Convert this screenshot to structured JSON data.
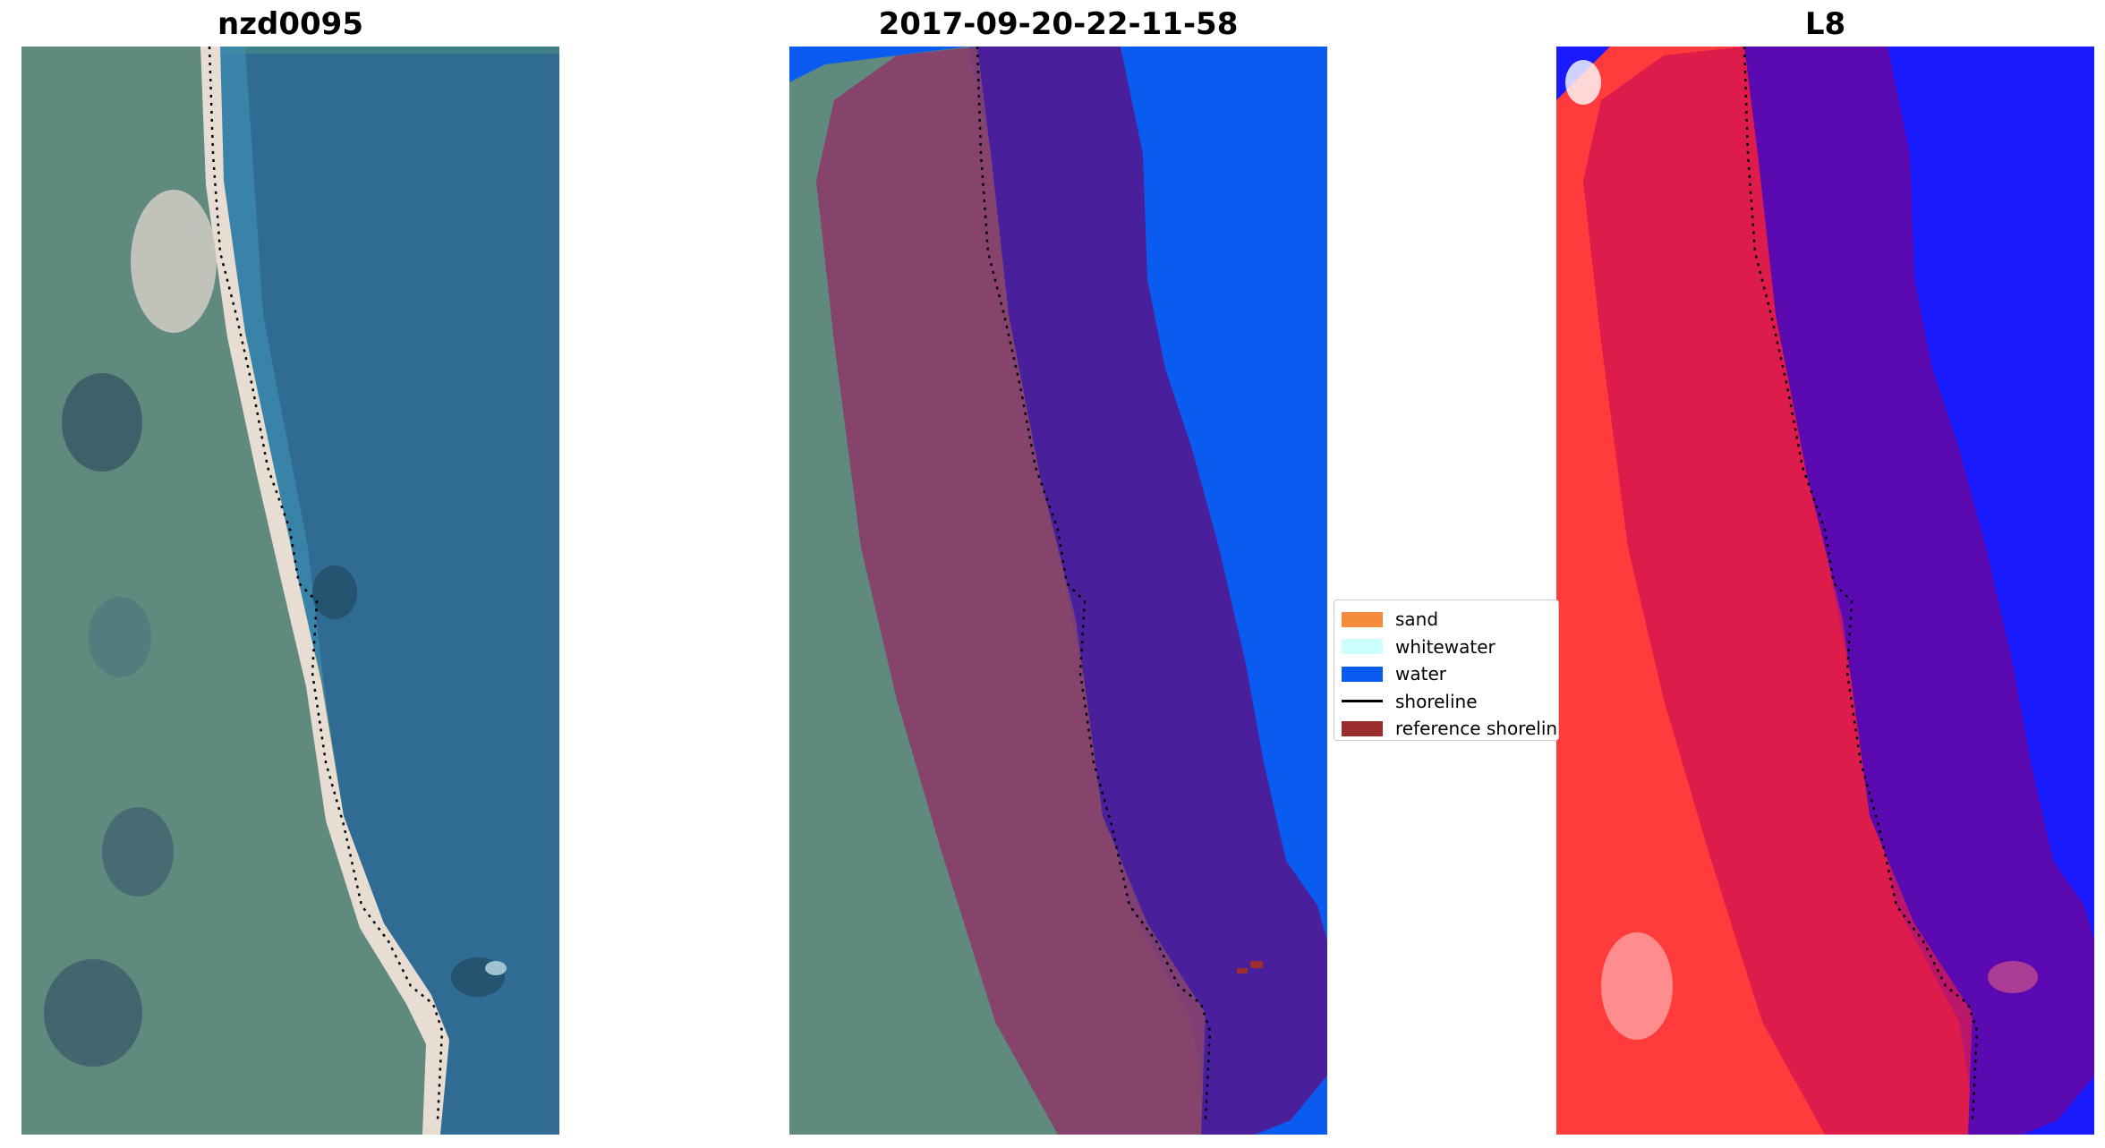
{
  "panels": [
    {
      "title": "nzd0095",
      "kind": "rgb"
    },
    {
      "title": "2017-09-20-22-11-58",
      "kind": "classified"
    },
    {
      "title": "L8",
      "kind": "index"
    }
  ],
  "legend": {
    "items": [
      {
        "label": "sand",
        "color": "#f58b3c",
        "type": "patch"
      },
      {
        "label": "whitewater",
        "color": "#ccffff",
        "type": "patch"
      },
      {
        "label": "water",
        "color": "#0a5cf0",
        "type": "patch"
      },
      {
        "label": "shoreline",
        "color": "#000000",
        "type": "line"
      },
      {
        "label": "reference shoreline",
        "color": "#9a2e2e",
        "type": "patch"
      }
    ]
  },
  "colors": {
    "ocean": "#2f6b93",
    "land": "#5f8a7d",
    "beach": "#e8ddd3",
    "class_water": "#0a5cf0",
    "buffer_land": "#8a3d6a",
    "buffer_water": "#4a1f9c",
    "index_land": "#ff3b3b",
    "index_sea": "#1a1aff"
  }
}
